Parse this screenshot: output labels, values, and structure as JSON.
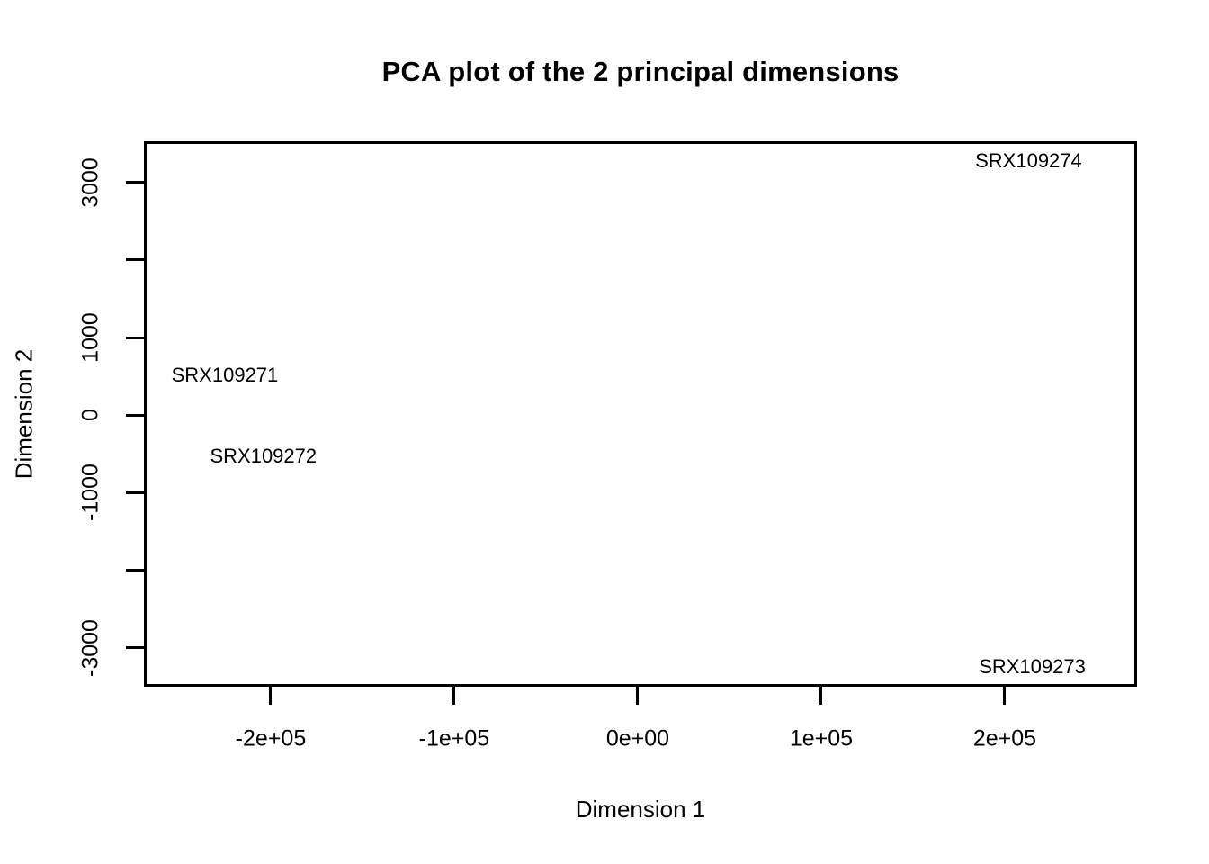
{
  "chart_data": {
    "type": "scatter",
    "title": "PCA plot of the 2 principal dimensions",
    "xlabel": "Dimension 1",
    "ylabel": "Dimension 2",
    "xlim": [
      -269100,
      272100
    ],
    "ylim": [
      -3500,
      3530
    ],
    "grid": false,
    "legend": "none",
    "marker_style": "text labels plotted at point coordinates, no point symbols",
    "colors": {
      "foreground": "#000000",
      "background": "#ffffff"
    },
    "x_ticks": [
      {
        "value": -200000,
        "label": "-2e+05"
      },
      {
        "value": -100000,
        "label": "-1e+05"
      },
      {
        "value": 0,
        "label": "0e+00"
      },
      {
        "value": 100000,
        "label": "1e+05"
      },
      {
        "value": 200000,
        "label": "2e+05"
      }
    ],
    "y_ticks": [
      {
        "value": -3000,
        "label": "-3000"
      },
      {
        "value": -2000,
        "label": ""
      },
      {
        "value": -1000,
        "label": "-1000"
      },
      {
        "value": 0,
        "label": "0"
      },
      {
        "value": 1000,
        "label": "1000"
      },
      {
        "value": 2000,
        "label": ""
      },
      {
        "value": 3000,
        "label": "3000"
      }
    ],
    "points": [
      {
        "label": "SRX109271",
        "x": -225000,
        "y": 510
      },
      {
        "label": "SRX109272",
        "x": -204000,
        "y": -530
      },
      {
        "label": "SRX109273",
        "x": 215000,
        "y": -3240
      },
      {
        "label": "SRX109274",
        "x": 213000,
        "y": 3270
      }
    ]
  }
}
